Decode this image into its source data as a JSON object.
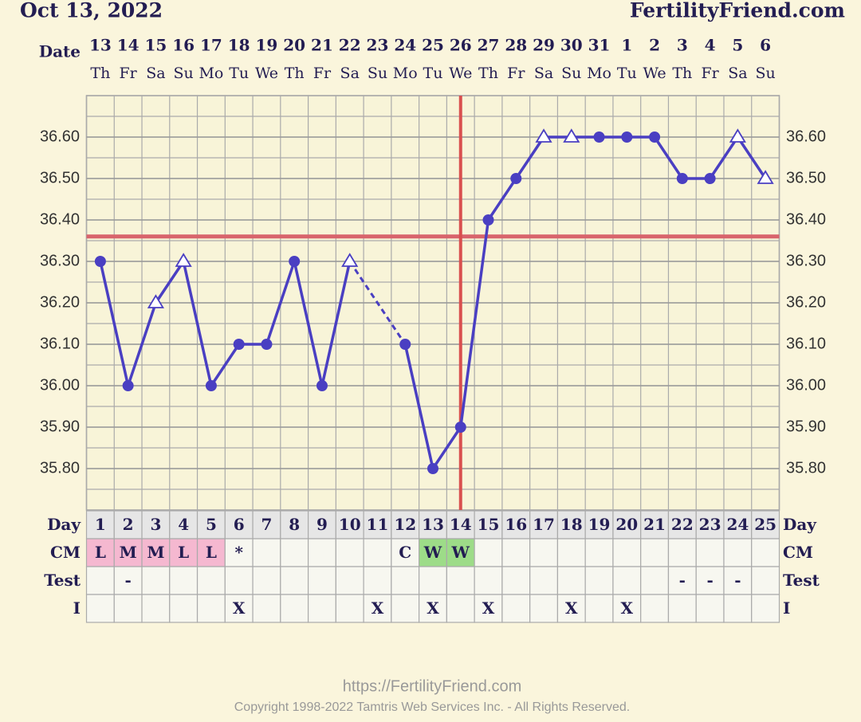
{
  "chart_data": {
    "type": "line",
    "title": "Oct 13, 2022",
    "site": "FertilityFriend.com",
    "date_label": "Date",
    "day_label": "Day",
    "dates": [
      13,
      14,
      15,
      16,
      17,
      18,
      19,
      20,
      21,
      22,
      23,
      24,
      25,
      26,
      27,
      28,
      29,
      30,
      31,
      1,
      2,
      3,
      4,
      5,
      6
    ],
    "weekdays": [
      "Th",
      "Fr",
      "Sa",
      "Su",
      "Mo",
      "Tu",
      "We",
      "Th",
      "Fr",
      "Sa",
      "Su",
      "Mo",
      "Tu",
      "We",
      "Th",
      "Fr",
      "Sa",
      "Su",
      "Mo",
      "Tu",
      "We",
      "Th",
      "Fr",
      "Sa",
      "Su"
    ],
    "categories": [
      1,
      2,
      3,
      4,
      5,
      6,
      7,
      8,
      9,
      10,
      11,
      12,
      13,
      14,
      15,
      16,
      17,
      18,
      19,
      20,
      21,
      22,
      23,
      24,
      25
    ],
    "series": [
      {
        "color": "#4a3fc2",
        "values": [
          36.3,
          36.0,
          36.2,
          36.3,
          36.0,
          36.1,
          36.1,
          36.3,
          36.0,
          36.3,
          null,
          36.1,
          35.8,
          35.9,
          36.4,
          36.5,
          36.6,
          36.6,
          36.6,
          36.6,
          36.6,
          36.5,
          36.5,
          36.6,
          36.5
        ],
        "markers": [
          "dot",
          "dot",
          "triangle",
          "triangle",
          "dot",
          "dot",
          "dot",
          "dot",
          "dot",
          "triangle",
          "dot",
          "dot",
          "dot",
          "dot",
          "dot",
          "dot",
          "triangle",
          "triangle",
          "dot",
          "dot",
          "dot",
          "dot",
          "dot",
          "triangle",
          "triangle"
        ],
        "gap_style": "dashed"
      }
    ],
    "ylim": [
      35.7,
      36.7
    ],
    "yticks": [
      {
        "value": 35.8,
        "label": "35.80"
      },
      {
        "value": 35.9,
        "label": "35.90"
      },
      {
        "value": 36.0,
        "label": "36.00"
      },
      {
        "value": 36.1,
        "label": "36.10"
      },
      {
        "value": 36.2,
        "label": "36.20"
      },
      {
        "value": 36.3,
        "label": "36.30"
      },
      {
        "value": 36.4,
        "label": "36.40"
      },
      {
        "value": 36.5,
        "label": "36.50"
      },
      {
        "value": 36.6,
        "label": "36.60"
      }
    ],
    "grid": true,
    "coverline": 36.36,
    "coverline_color": "#d8646c",
    "ovulation_day": 14,
    "ovulation_color": "#d9504f",
    "rows": [
      {
        "label": "CM",
        "cells": [
          "L",
          "M",
          "M",
          "L",
          "L",
          "*",
          null,
          null,
          null,
          null,
          null,
          "C",
          "W",
          "W",
          null,
          null,
          null,
          null,
          null,
          null,
          null,
          null,
          null,
          null,
          null
        ]
      },
      {
        "label": "Test",
        "cells": [
          null,
          "-",
          null,
          null,
          null,
          null,
          null,
          null,
          null,
          null,
          null,
          null,
          null,
          null,
          null,
          null,
          null,
          null,
          null,
          null,
          null,
          "-",
          "-",
          "-",
          null
        ]
      },
      {
        "label": "I",
        "cells": [
          null,
          null,
          null,
          null,
          null,
          "X",
          null,
          null,
          null,
          null,
          "X",
          null,
          "X",
          null,
          "X",
          null,
          null,
          "X",
          null,
          "X",
          null,
          null,
          null,
          null,
          null
        ]
      }
    ],
    "cell_colors": {
      "L": "#f5b8d0",
      "M": "#f5b8d0",
      "W": "#9ddc88"
    },
    "footer_url": "https://FertilityFriend.com",
    "copyright": "Copyright 1998-2022 Tamtris Web Services Inc. - All Rights Reserved."
  }
}
